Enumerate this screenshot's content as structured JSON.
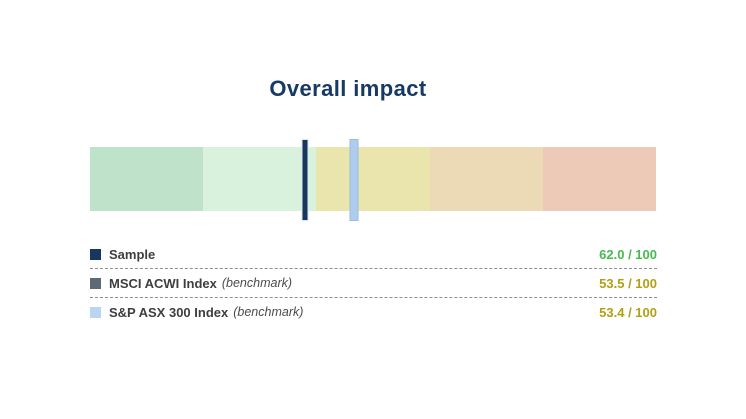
{
  "title": "Overall impact",
  "chart_data": {
    "type": "bullet-gauge",
    "title": "Overall impact",
    "scale": {
      "min": 0,
      "max": 100,
      "orientation": "horizontal",
      "high_values_on_left": true
    },
    "bands": [
      {
        "range": [
          100,
          80
        ],
        "color": "#bfe3ca",
        "label": "80-100"
      },
      {
        "range": [
          80,
          60
        ],
        "color": "#d9f2de",
        "label": "60-80"
      },
      {
        "range": [
          60,
          40
        ],
        "color": "#e9e5ac",
        "label": "40-60"
      },
      {
        "range": [
          40,
          20
        ],
        "color": "#ecdab7",
        "label": "20-40"
      },
      {
        "range": [
          20,
          0
        ],
        "color": "#eccab7",
        "label": "0-20"
      }
    ],
    "markers": [
      {
        "name": "Sample",
        "value": 62.0,
        "color": "#17375e"
      },
      {
        "name": "MSCI ACWI Index (benchmark)",
        "value": 53.5,
        "color": "#5d6a76"
      },
      {
        "name": "S&P ASX 300 Index (benchmark)",
        "value": 53.4,
        "color": "#aecdee"
      }
    ]
  },
  "legend": {
    "rows": [
      {
        "label": "Sample",
        "suffix": "",
        "value_text": "62.0 / 100",
        "swatch": "#17375e",
        "value_color": "#47b951"
      },
      {
        "label": "MSCI ACWI Index",
        "suffix": "(benchmark)",
        "value_text": "53.5 / 100",
        "swatch": "#5d6a76",
        "value_color": "#b0a014"
      },
      {
        "label": "S&P ASX 300 Index",
        "suffix": "(benchmark)",
        "value_text": "53.4 / 100",
        "swatch": "#b9d5f2",
        "value_color": "#b0a014"
      }
    ]
  }
}
